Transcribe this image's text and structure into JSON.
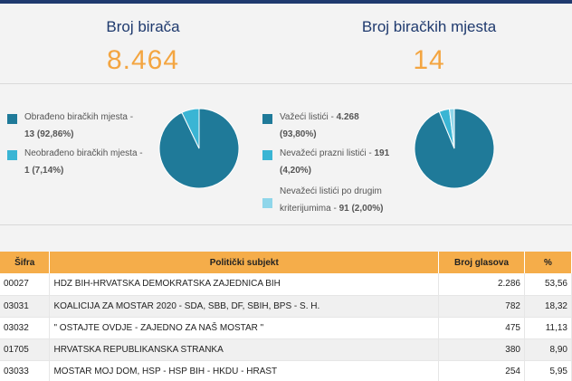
{
  "header": {
    "voters_label": "Broj birača",
    "voters_value": "8.464",
    "stations_label": "Broj biračkih mjesta",
    "stations_value": "14"
  },
  "colors": {
    "primary": "#1f7a99",
    "secondary": "#3ab5d4",
    "tertiary": "#8fd6ea",
    "accent": "#f5ad4a",
    "title": "#1f3a6e"
  },
  "stations_panel": {
    "items": [
      {
        "line1": "Obrađeno biračkih mjesta -",
        "line2": "13 (92,86%)",
        "color": "#1f7a99"
      },
      {
        "line1": "Neobrađeno biračkih mjesta -",
        "line2": "1 (7,14%)",
        "color": "#3ab5d4"
      }
    ]
  },
  "ballots_panel": {
    "items": [
      {
        "line1a": "Važeći listići - ",
        "line1b": "4.268",
        "line2": "(93,80%)",
        "color": "#1f7a99"
      },
      {
        "line1a": "Nevažeći prazni listići - ",
        "line1b": "191",
        "line2": "(4,20%)",
        "color": "#3ab5d4"
      },
      {
        "line1a": "Nevažeći listići po drugim",
        "line1b": "",
        "line2a": "kriterijumima - ",
        "line2": "91 (2,00%)",
        "color": "#8fd6ea"
      }
    ]
  },
  "chart_data": [
    {
      "type": "pie",
      "series": [
        {
          "values": [
            92.86,
            7.14
          ]
        }
      ],
      "categories": [
        "Obrađeno biračkih mjesta",
        "Neobrađeno biračkih mjesta"
      ]
    },
    {
      "type": "pie",
      "series": [
        {
          "values": [
            93.8,
            4.2,
            2.0
          ]
        }
      ],
      "categories": [
        "Važeći listići",
        "Nevažeći prazni listići",
        "Nevažeći listići po drugim kriterijumima"
      ]
    }
  ],
  "table": {
    "headers": {
      "code": "Šifra",
      "name": "Politički subjekt",
      "votes": "Broj glasova",
      "pct": "%"
    },
    "rows": [
      {
        "code": "00027",
        "name": "HDZ BIH-HRVATSKA DEMOKRATSKA ZAJEDNICA BIH",
        "votes": "2.286",
        "pct": "53,56"
      },
      {
        "code": "03031",
        "name": "KOALICIJA ZA MOSTAR 2020 - SDA, SBB, DF, SBIH, BPS - S. H.",
        "votes": "782",
        "pct": "18,32"
      },
      {
        "code": "03032",
        "name": "\" OSTAJTE OVDJE - ZAJEDNO ZA NAŠ MOSTAR \"",
        "votes": "475",
        "pct": "11,13"
      },
      {
        "code": "01705",
        "name": "HRVATSKA REPUBLIKANSKA STRANKA",
        "votes": "380",
        "pct": "8,90"
      },
      {
        "code": "03033",
        "name": "MOSTAR MOJ DOM, HSP - HSP BIH - HKDU - HRAST",
        "votes": "254",
        "pct": "5,95"
      }
    ]
  }
}
